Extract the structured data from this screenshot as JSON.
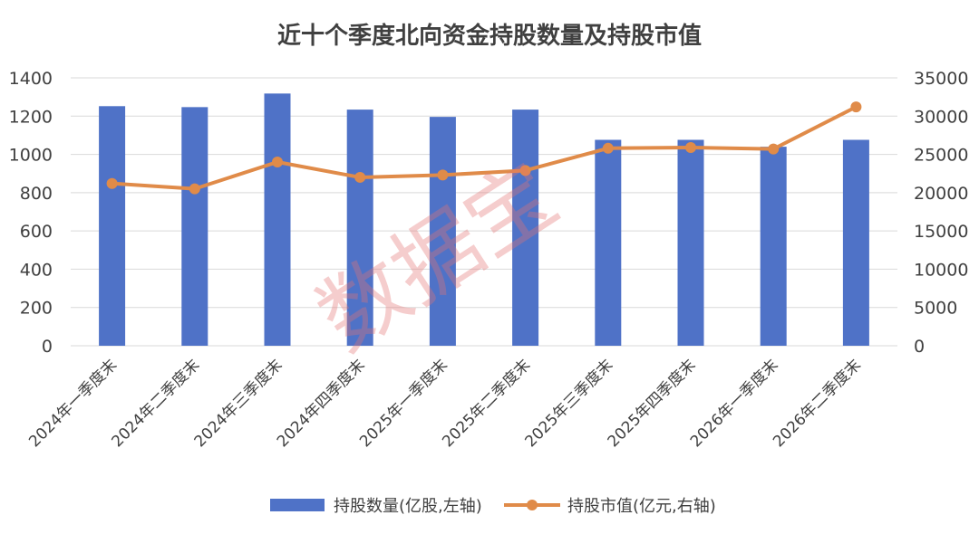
{
  "chart_data": {
    "type": "bar+line",
    "title": "近十个季度北向资金持股数量及持股市值",
    "categories": [
      "2024年一季度末",
      "2024年二季度末",
      "2024年三季度末",
      "2024年四季度末",
      "2025年一季度末",
      "2025年二季度末",
      "2025年三季度末",
      "2025年四季度末",
      "2026年一季度末",
      "2026年二季度末"
    ],
    "series": [
      {
        "name": "持股数量(亿股,左轴)",
        "type": "bar",
        "axis": "left",
        "color": "#4f72c7",
        "values": [
          1252,
          1247,
          1318,
          1234,
          1196,
          1234,
          1076,
          1076,
          1040,
          1076
        ]
      },
      {
        "name": "持股市值(亿元,右轴)",
        "type": "line",
        "axis": "right",
        "color": "#e08b49",
        "values": [
          21200,
          20500,
          24000,
          22000,
          22300,
          22900,
          25800,
          25900,
          25700,
          31200
        ]
      }
    ],
    "yleft": {
      "min": 0,
      "max": 1400,
      "ticks": [
        "0",
        "200",
        "400",
        "600",
        "800",
        "1000",
        "1200",
        "1400"
      ]
    },
    "yright": {
      "min": 0,
      "max": 35000,
      "ticks": [
        "0",
        "5000",
        "10000",
        "15000",
        "20000",
        "25000",
        "30000",
        "35000"
      ]
    },
    "grid": true,
    "legend_position": "bottom"
  },
  "watermark": "数据宝"
}
